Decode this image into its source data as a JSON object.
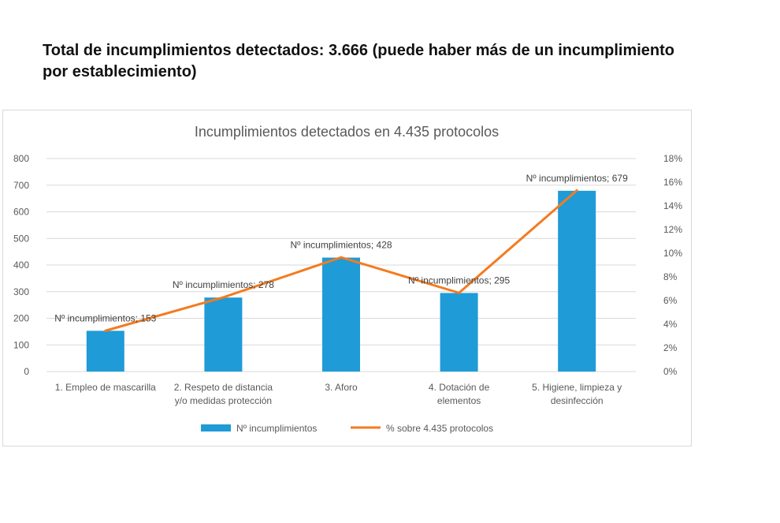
{
  "headline": "Total de incumplimientos  detectados: 3.666 (puede haber más de un incumplimiento\npor establecimiento)",
  "colors": {
    "bar": "#1f9bd7",
    "line": "#f47b20",
    "grid": "#d9d9d9",
    "text": "#595959"
  },
  "chart_data": {
    "type": "bar",
    "title": "Incumplimientos detectados en 4.435 protocolos",
    "categories": [
      [
        "1. Empleo de mascarilla"
      ],
      [
        "2. Respeto de distancia",
        "y/o medidas protección"
      ],
      [
        "3. Aforo"
      ],
      [
        "4. Dotación de",
        "elementos"
      ],
      [
        "5. Higiene, limpieza y",
        "desinfección"
      ]
    ],
    "series": [
      {
        "name": "Nº incumplimientos",
        "kind": "bar",
        "axis": "left",
        "values": [
          153,
          278,
          428,
          295,
          679
        ],
        "labels": [
          "Nº incumplimientos; 153",
          "Nº incumplimientos; 278",
          "Nº incumplimientos; 428",
          "Nº incumplimientos; 295",
          "Nº incumplimientos; 679"
        ]
      },
      {
        "name": "% sobre 4.435 protocolos",
        "kind": "line",
        "axis": "right",
        "values": [
          3.45,
          6.27,
          9.65,
          6.65,
          15.31
        ]
      }
    ],
    "y_left": {
      "min": 0,
      "max": 800,
      "step": 100,
      "ticks": [
        "0",
        "100",
        "200",
        "300",
        "400",
        "500",
        "600",
        "700",
        "800"
      ]
    },
    "y_right": {
      "min": 0,
      "max": 18,
      "step": 2,
      "ticks": [
        "0%",
        "2%",
        "4%",
        "6%",
        "8%",
        "10%",
        "12%",
        "14%",
        "16%",
        "18%"
      ]
    },
    "grid": true,
    "legend": "bottom"
  }
}
